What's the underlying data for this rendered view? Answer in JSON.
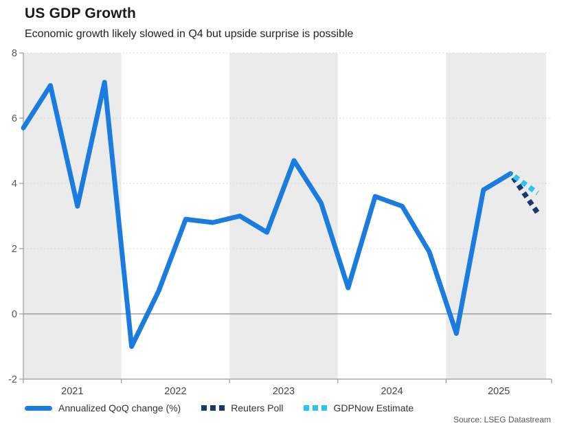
{
  "header": {
    "title": "US GDP Growth",
    "subtitle": "Economic growth likely slowed in Q4 but upside surprise is possible"
  },
  "source": "Source: LSEG Datastream",
  "colors": {
    "actual_line": "#1b7ce0",
    "reuters_poll": "#17396b",
    "gdpnow": "#29c4f0",
    "band_gray": "#ebebeb",
    "axis": "#999999",
    "zero_line": "#8c8c8c",
    "gridline": "#d9d9d9",
    "tick_label": "#555555",
    "year_label": "#444444"
  },
  "legend": {
    "items": [
      {
        "label": "Annualized QoQ change (%)",
        "swatch": "solid-line",
        "color": "#1b7ce0"
      },
      {
        "label": "Reuters Poll",
        "swatch": "dotted",
        "color": "#17396b"
      },
      {
        "label": "GDPNow Estimate",
        "swatch": "dotted",
        "color": "#29c4f0"
      }
    ]
  },
  "chart_data": {
    "type": "line",
    "title": "US GDP Growth",
    "subtitle": "Economic growth likely slowed in Q4 but upside surprise is possible",
    "x": [
      "2021 Q1",
      "2021 Q2",
      "2021 Q3",
      "2021 Q4",
      "2022 Q1",
      "2022 Q2",
      "2022 Q3",
      "2022 Q4",
      "2023 Q1",
      "2023 Q2",
      "2023 Q3",
      "2023 Q4",
      "2024 Q1",
      "2024 Q2",
      "2024 Q3",
      "2024 Q4",
      "2025 Q1",
      "2025 Q2",
      "2025 Q3"
    ],
    "series": [
      {
        "name": "Annualized QoQ change (%)",
        "style": "solid",
        "color": "#1b7ce0",
        "values": [
          5.7,
          7.0,
          3.3,
          7.1,
          -1.0,
          0.7,
          2.9,
          2.8,
          3.0,
          2.5,
          4.7,
          3.4,
          0.8,
          3.6,
          3.3,
          1.9,
          -0.6,
          3.8,
          4.3
        ]
      }
    ],
    "forecasts": [
      {
        "name": "Reuters Poll",
        "style": "dotted",
        "color": "#17396b",
        "from_x": "2025 Q3",
        "from_value": 4.3,
        "x": "2025 Q4",
        "value": 3.1
      },
      {
        "name": "GDPNow Estimate",
        "style": "dotted",
        "color": "#29c4f0",
        "from_x": "2025 Q3",
        "from_value": 4.3,
        "x": "2025 Q4",
        "value": 3.7
      }
    ],
    "xlabel": "",
    "ylabel": "",
    "ylim": [
      -2,
      8
    ],
    "yticks": [
      -2,
      0,
      2,
      4,
      6,
      8
    ],
    "year_ticks": [
      "2021",
      "2022",
      "2023",
      "2024",
      "2025"
    ],
    "grid": "dotted horizontal lines at 2,4,6,8; solid line at 0; alternating gray/white year bands",
    "legend_position": "bottom"
  }
}
